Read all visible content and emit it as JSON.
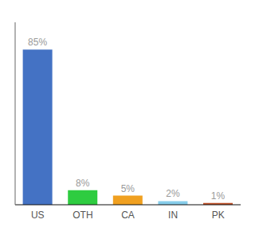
{
  "chart_data": {
    "type": "bar",
    "categories": [
      "US",
      "OTH",
      "CA",
      "IN",
      "PK"
    ],
    "values": [
      85,
      8,
      5,
      2,
      1
    ],
    "value_labels": [
      "85%",
      "8%",
      "5%",
      "2%",
      "1%"
    ],
    "colors": [
      "#4472c4",
      "#2ecc40",
      "#f0a020",
      "#87ceeb",
      "#c0522a"
    ],
    "ylim": [
      0,
      100
    ],
    "data_labels": true,
    "tick_labels": "x",
    "grid": false
  }
}
